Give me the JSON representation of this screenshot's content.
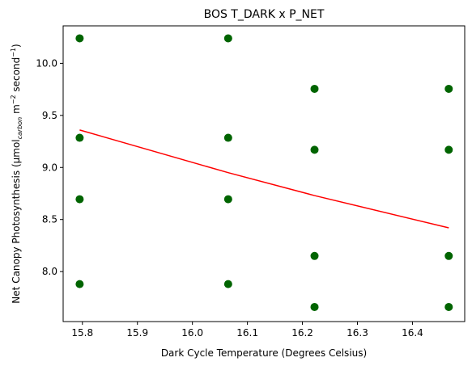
{
  "chart_data": {
    "type": "scatter",
    "title": "BOS T_DARK x P_NET",
    "xlabel": "Dark Cycle Temperature (Degrees Celsius)",
    "ylabel": {
      "main": "Net Canopy Photosynthesis (μmol",
      "sub": "carbon",
      "mid": " m",
      "sup1": "−2",
      "mid2": " second",
      "sup2": "−1",
      "end": ")"
    },
    "xlim": [
      15.765,
      16.495
    ],
    "ylim": [
      7.52,
      10.36
    ],
    "xticks": [
      15.8,
      15.9,
      16.0,
      16.1,
      16.2,
      16.3,
      16.4
    ],
    "xtick_labels": [
      "15.8",
      "15.9",
      "16.0",
      "16.1",
      "16.2",
      "16.3",
      "16.4"
    ],
    "yticks": [
      8.0,
      8.5,
      9.0,
      9.5,
      10.0
    ],
    "ytick_labels": [
      "8.0",
      "8.5",
      "9.0",
      "9.5",
      "10.0"
    ],
    "grid": false,
    "point_color": "#006400",
    "line_color": "#ff0000",
    "points": [
      {
        "x": 15.795,
        "y": 10.24
      },
      {
        "x": 15.795,
        "y": 9.285
      },
      {
        "x": 15.795,
        "y": 8.695
      },
      {
        "x": 15.795,
        "y": 7.88
      },
      {
        "x": 16.065,
        "y": 10.24
      },
      {
        "x": 16.065,
        "y": 9.285
      },
      {
        "x": 16.065,
        "y": 8.695
      },
      {
        "x": 16.065,
        "y": 7.88
      },
      {
        "x": 16.222,
        "y": 9.755
      },
      {
        "x": 16.222,
        "y": 9.17
      },
      {
        "x": 16.222,
        "y": 8.15
      },
      {
        "x": 16.222,
        "y": 7.66
      },
      {
        "x": 16.466,
        "y": 9.755
      },
      {
        "x": 16.466,
        "y": 9.17
      },
      {
        "x": 16.466,
        "y": 8.15
      },
      {
        "x": 16.466,
        "y": 7.66
      }
    ],
    "trend_line": [
      {
        "x": 15.795,
        "y": 9.36
      },
      {
        "x": 16.065,
        "y": 8.95
      },
      {
        "x": 16.222,
        "y": 8.73
      },
      {
        "x": 16.466,
        "y": 8.42
      }
    ]
  }
}
